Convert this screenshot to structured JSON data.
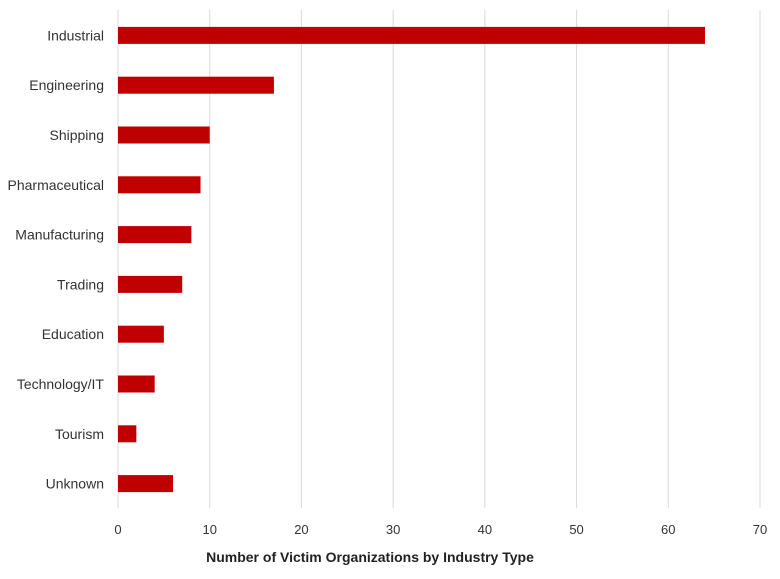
{
  "chart_data": {
    "type": "bar",
    "orientation": "horizontal",
    "categories": [
      "Industrial",
      "Engineering",
      "Shipping",
      "Pharmaceutical",
      "Manufacturing",
      "Trading",
      "Education",
      "Technology/IT",
      "Tourism",
      "Unknown"
    ],
    "values": [
      64,
      17,
      10,
      9,
      8,
      7,
      5,
      4,
      2,
      6
    ],
    "title": "",
    "xlabel": "Number of Victim Organizations by Industry Type",
    "ylabel": "",
    "xlim": [
      0,
      70
    ],
    "xticks": [
      0,
      10,
      20,
      30,
      40,
      50,
      60,
      70
    ],
    "grid": "vertical",
    "legend": "none",
    "bar_color": "#c00000"
  }
}
